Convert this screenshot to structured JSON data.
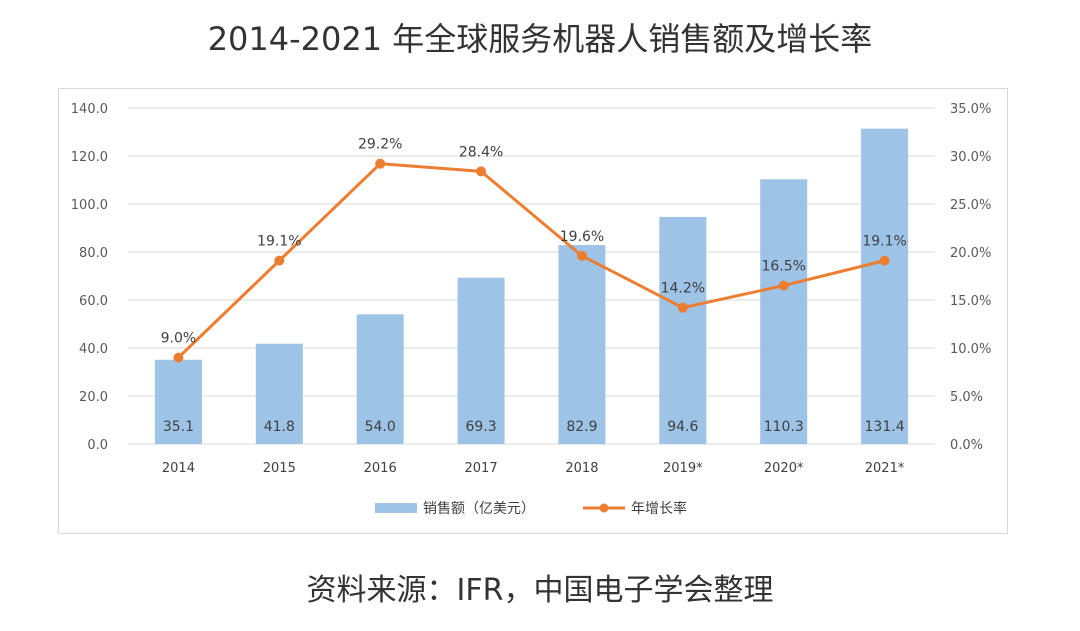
{
  "title": "2014-2021 年全球服务机器人销售额及增长率",
  "source": "资料来源：IFR，中国电子学会整理",
  "colors": {
    "bar": "#9dc3e6",
    "line": "#ed7d31",
    "grid": "#d9d9d9"
  },
  "chart_data": {
    "type": "bar",
    "categories": [
      "2014",
      "2015",
      "2016",
      "2017",
      "2018",
      "2019*",
      "2020*",
      "2021*"
    ],
    "series": [
      {
        "name": "销售额（亿美元）",
        "type": "bar",
        "axis": "left",
        "values": [
          35.1,
          41.8,
          54.0,
          69.3,
          82.9,
          94.6,
          110.3,
          131.4
        ],
        "labels": [
          "35.1",
          "41.8",
          "54.0",
          "69.3",
          "82.9",
          "94.6",
          "110.3",
          "131.4"
        ]
      },
      {
        "name": "年增长率",
        "type": "line",
        "axis": "right",
        "values": [
          9.0,
          19.1,
          29.2,
          28.4,
          19.6,
          14.2,
          16.5,
          19.1
        ],
        "labels": [
          "9.0%",
          "19.1%",
          "29.2%",
          "28.4%",
          "19.6%",
          "14.2%",
          "16.5%",
          "19.1%"
        ]
      }
    ],
    "y_left": {
      "ylim": [
        0,
        140
      ],
      "ticks": [
        "0.0",
        "20.0",
        "40.0",
        "60.0",
        "80.0",
        "100.0",
        "120.0",
        "140.0"
      ]
    },
    "y_right": {
      "ylim": [
        0,
        35
      ],
      "ticks": [
        "0.0%",
        "5.0%",
        "10.0%",
        "15.0%",
        "20.0%",
        "25.0%",
        "30.0%",
        "35.0%"
      ]
    },
    "grid": true,
    "legend": "bottom"
  }
}
